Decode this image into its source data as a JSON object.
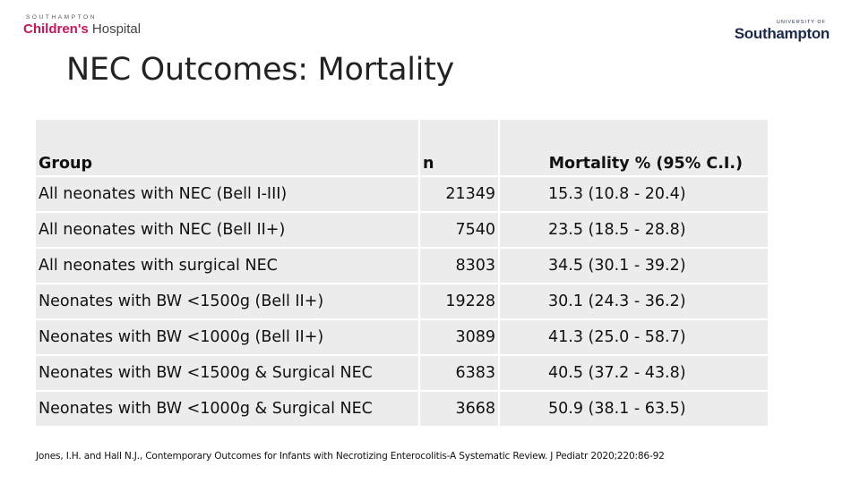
{
  "logos": {
    "left": {
      "small": "SOUTHAMPTON",
      "brand_a": "Children's",
      "brand_b": " Hospital"
    },
    "right": {
      "small": "UNIVERSITY OF",
      "name": "Southampton"
    }
  },
  "slide": {
    "title": "NEC Outcomes: Mortality"
  },
  "table": {
    "headers": {
      "group": "Group",
      "n": "n",
      "mortality": "Mortality % (95% C.I.)"
    },
    "rows": [
      {
        "group": "All neonates with NEC (Bell I-III)",
        "n": "21349",
        "mortality": "15.3 (10.8 - 20.4)"
      },
      {
        "group": "All neonates with NEC (Bell II+)",
        "n": "7540",
        "mortality": "23.5 (18.5 - 28.8)"
      },
      {
        "group": "All neonates with surgical NEC",
        "n": "8303",
        "mortality": "34.5 (30.1 - 39.2)"
      },
      {
        "group": "Neonates with BW <1500g (Bell II+)",
        "n": "19228",
        "mortality": "30.1 (24.3 - 36.2)"
      },
      {
        "group": "Neonates with BW <1000g (Bell II+)",
        "n": "3089",
        "mortality": "41.3 (25.0 - 58.7)"
      },
      {
        "group": "Neonates with BW <1500g & Surgical NEC",
        "n": "6383",
        "mortality": "40.5 (37.2 - 43.8)"
      },
      {
        "group": "Neonates with BW <1000g & Surgical NEC",
        "n": "3668",
        "mortality": "50.9 (38.1 - 63.5)"
      }
    ]
  },
  "citation": "Jones, I.H. and Hall N.J., Contemporary Outcomes for Infants with Necrotizing Enterocolitis-A Systematic Review. J Pediatr 2020;220:86-92",
  "colors": {
    "hospital_brand": "#c2185b",
    "university_brand": "#1c2b4a",
    "table_fill": "#ececec"
  }
}
